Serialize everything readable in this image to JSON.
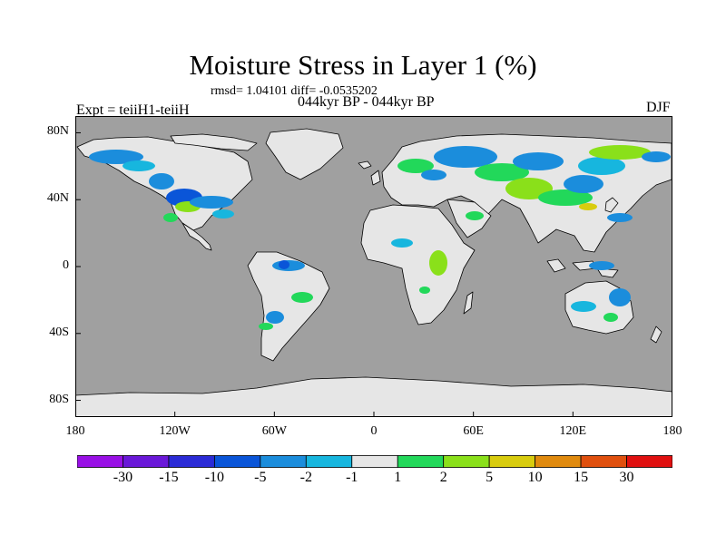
{
  "title": "Moisture Stress in Layer 1 (%)",
  "stats": "rmsd= 1.04101 diff= -0.0535202",
  "period": "044kyr BP - 044kyr BP",
  "experiment": "Expt = teiiH1-teiiH",
  "season": "DJF",
  "map": {
    "projection": "equirectangular",
    "lon_range": [
      -180,
      180
    ],
    "lat_range": [
      -90,
      90
    ],
    "ocean_color": "#a0a0a0",
    "land_color": "#e6e6e6",
    "coastline_color": "#000000",
    "lat_ticks": [
      {
        "value": 80,
        "label": "80N"
      },
      {
        "value": 40,
        "label": "40N"
      },
      {
        "value": 0,
        "label": "0"
      },
      {
        "value": -40,
        "label": "40S"
      },
      {
        "value": -80,
        "label": "80S"
      }
    ],
    "lon_ticks": [
      {
        "value": -180,
        "label": "180"
      },
      {
        "value": -120,
        "label": "120W"
      },
      {
        "value": -60,
        "label": "60W"
      },
      {
        "value": 0,
        "label": "0"
      },
      {
        "value": 60,
        "label": "60E"
      },
      {
        "value": 120,
        "label": "120E"
      },
      {
        "value": 180,
        "label": "180"
      }
    ]
  },
  "colorbar": {
    "colors": [
      "#9910e6",
      "#6a18d8",
      "#2b2bd6",
      "#0a55d8",
      "#1b8ddc",
      "#17b6de",
      "#e6e6e6",
      "#22d85a",
      "#8ae01a",
      "#d8cc0e",
      "#e08a0e",
      "#e0500e",
      "#e01010"
    ],
    "labels": [
      "-30",
      "-15",
      "-10",
      "-5",
      "-2",
      "-1",
      "1",
      "2",
      "5",
      "10",
      "15",
      "30"
    ]
  }
}
